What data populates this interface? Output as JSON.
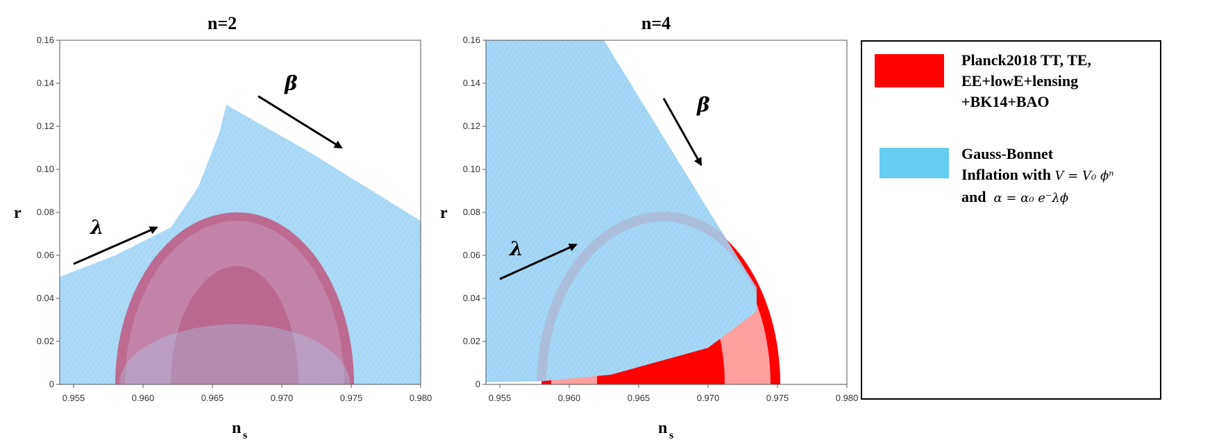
{
  "chart_data": [
    {
      "type": "area",
      "title": "n=2",
      "xlabel": "n",
      "xlabel_sub": "s",
      "ylabel": "r",
      "xlim": [
        0.954,
        0.98
      ],
      "ylim": [
        0,
        0.16
      ],
      "xticks": [
        "0.955",
        "0.960",
        "0.965",
        "0.970",
        "0.975",
        "0.980"
      ],
      "yticks": [
        "0",
        "0.02",
        "0.04",
        "0.06",
        "0.08",
        "0.10",
        "0.12",
        "0.14",
        "0.16"
      ],
      "planck_contours": {
        "center_ns": 0.9668,
        "sigma1": {
          "ns_range": [
            0.962,
            0.9712
          ],
          "r_max": 0.055
        },
        "sigma2": {
          "ns_range": [
            0.958,
            0.9752
          ],
          "r_max": 0.08
        }
      },
      "gauss_bonnet_region": {
        "upper_boundary": [
          {
            "ns": 0.954,
            "r": 0.05
          },
          {
            "ns": 0.958,
            "r": 0.06
          },
          {
            "ns": 0.962,
            "r": 0.073
          },
          {
            "ns": 0.964,
            "r": 0.092
          },
          {
            "ns": 0.9655,
            "r": 0.117
          },
          {
            "ns": 0.966,
            "r": 0.13
          },
          {
            "ns": 0.972,
            "r": 0.108
          },
          {
            "ns": 0.976,
            "r": 0.092
          },
          {
            "ns": 0.98,
            "r": 0.076
          }
        ]
      },
      "annotations": [
        {
          "text": "λ",
          "arrow_from": {
            "ns": 0.955,
            "r": 0.056
          },
          "arrow_to": {
            "ns": 0.961,
            "r": 0.073
          }
        },
        {
          "text": "β",
          "arrow_from": {
            "ns": 0.9683,
            "r": 0.134
          },
          "arrow_to": {
            "ns": 0.9743,
            "r": 0.11
          }
        }
      ]
    },
    {
      "type": "area",
      "title": "n=4",
      "xlabel": "n",
      "xlabel_sub": "s",
      "ylabel": "r",
      "xlim": [
        0.954,
        0.98
      ],
      "ylim": [
        0,
        0.16
      ],
      "xticks": [
        "0.955",
        "0.960",
        "0.965",
        "0.970",
        "0.975",
        "0.980"
      ],
      "yticks": [
        "0",
        "0.02",
        "0.04",
        "0.06",
        "0.08",
        "0.10",
        "0.12",
        "0.14",
        "0.16"
      ],
      "planck_contours": {
        "center_ns": 0.9668,
        "sigma1": {
          "ns_range": [
            0.962,
            0.9712
          ],
          "r_max": 0.055
        },
        "sigma2": {
          "ns_range": [
            0.958,
            0.9752
          ],
          "r_max": 0.08
        }
      },
      "gauss_bonnet_region": {
        "boundary": [
          {
            "ns": 0.954,
            "r": 0.16
          },
          {
            "ns": 0.9625,
            "r": 0.16
          },
          {
            "ns": 0.9705,
            "r": 0.076
          },
          {
            "ns": 0.9735,
            "r": 0.045
          },
          {
            "ns": 0.9735,
            "r": 0.034
          },
          {
            "ns": 0.97,
            "r": 0.017
          },
          {
            "ns": 0.963,
            "r": 0.0045
          },
          {
            "ns": 0.958,
            "r": 0.0015
          },
          {
            "ns": 0.954,
            "r": 0.001
          }
        ]
      },
      "annotations": [
        {
          "text": "λ",
          "arrow_from": {
            "ns": 0.955,
            "r": 0.049
          },
          "arrow_to": {
            "ns": 0.9605,
            "r": 0.065
          }
        },
        {
          "text": "β",
          "arrow_from": {
            "ns": 0.9668,
            "r": 0.133
          },
          "arrow_to": {
            "ns": 0.9695,
            "r": 0.102
          }
        }
      ]
    }
  ],
  "legend": {
    "planck_lines": [
      "Planck2018 TT, TE,",
      "EE+lowE+lensing",
      "+BK14+BAO"
    ],
    "planck_color": "#ff0000",
    "gb_color": "#66cdf2",
    "gb_line1": "Gauss-Bonnet",
    "gb_line2_text": "Inflation with",
    "gb_line2_math": "V = V₀ ϕⁿ",
    "gb_line3_text": "and",
    "gb_line3_math": "α = α₀ e⁻λϕ"
  },
  "colors": {
    "gb_fill": "#9fd4f5",
    "gb_dense": "#8cc8f0",
    "planck_red": "#ff0000",
    "planck_pink": "#ff9f9f",
    "planck_over_blue": "#c17a9a"
  }
}
